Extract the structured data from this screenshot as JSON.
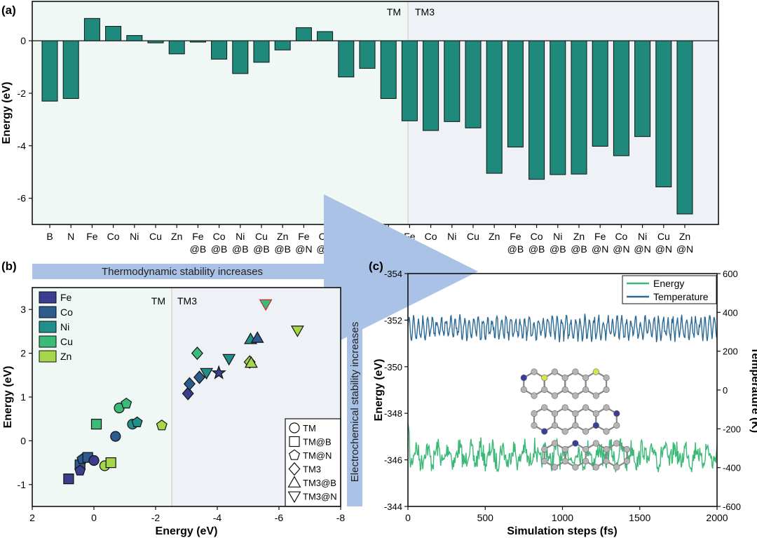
{
  "chart_data": [
    {
      "panel": "(a)",
      "type": "bar",
      "ylabel": "Energy (eV)",
      "xlabel": "",
      "ylim": [
        -7,
        1.5
      ],
      "yticks": [
        0,
        -2,
        -4,
        -6
      ],
      "regions": [
        "TM",
        "TM3"
      ],
      "bar_color": "#1f8a7c",
      "region_colors": {
        "TM": "#f0f8f6",
        "TM3": "#eef1f6"
      },
      "categories": [
        {
          "l1": "B",
          "l2": ""
        },
        {
          "l1": "N",
          "l2": ""
        },
        {
          "l1": "Fe",
          "l2": ""
        },
        {
          "l1": "Co",
          "l2": ""
        },
        {
          "l1": "Ni",
          "l2": ""
        },
        {
          "l1": "Cu",
          "l2": ""
        },
        {
          "l1": "Zn",
          "l2": ""
        },
        {
          "l1": "Fe",
          "l2": "@B"
        },
        {
          "l1": "Co",
          "l2": "@B"
        },
        {
          "l1": "Ni",
          "l2": "@B"
        },
        {
          "l1": "Cu",
          "l2": "@B"
        },
        {
          "l1": "Zn",
          "l2": "@B"
        },
        {
          "l1": "Fe",
          "l2": "@N"
        },
        {
          "l1": "Co",
          "l2": "@N"
        },
        {
          "l1": "Ni",
          "l2": "@N"
        },
        {
          "l1": "Cu",
          "l2": "@N"
        },
        {
          "l1": "Zn",
          "l2": "@N"
        },
        {
          "l1": "Fe",
          "l2": ""
        },
        {
          "l1": "Co",
          "l2": ""
        },
        {
          "l1": "Ni",
          "l2": ""
        },
        {
          "l1": "Cu",
          "l2": ""
        },
        {
          "l1": "Zn",
          "l2": ""
        },
        {
          "l1": "Fe",
          "l2": "@B"
        },
        {
          "l1": "Co",
          "l2": "@B"
        },
        {
          "l1": "Ni",
          "l2": "@B"
        },
        {
          "l1": "Zn",
          "l2": "@B"
        },
        {
          "l1": "Fe",
          "l2": "@N"
        },
        {
          "l1": "Co",
          "l2": "@N"
        },
        {
          "l1": "Ni",
          "l2": "@N"
        },
        {
          "l1": "Cu",
          "l2": "@N"
        },
        {
          "l1": "Zn",
          "l2": "@N"
        }
      ],
      "values": [
        -2.3,
        -2.2,
        0.85,
        0.55,
        0.2,
        -0.08,
        -0.5,
        -0.05,
        -0.7,
        -1.25,
        -0.82,
        -0.35,
        0.5,
        0.35,
        -1.38,
        -1.05,
        -2.2,
        -3.05,
        -3.42,
        -3.08,
        -3.32,
        -5.05,
        -4.05,
        -5.28,
        -5.1,
        -5.08,
        -4.02,
        -4.38,
        -3.65,
        -5.57,
        -6.6
      ]
    },
    {
      "panel": "(b)",
      "type": "scatter",
      "xlabel": "Energy (eV)",
      "ylabel": "Energy (eV)",
      "xlim": [
        2,
        -8
      ],
      "ylim": [
        -1.5,
        3.5
      ],
      "xticks": [
        2,
        0,
        -2,
        -4,
        -6,
        -8
      ],
      "yticks": [
        -1,
        0,
        1,
        2,
        3
      ],
      "regions": [
        "TM",
        "TM3"
      ],
      "arrow_horizontal": "Thermodynamic stability increases",
      "arrow_vertical": "Electrochemical stability increases",
      "elements": [
        {
          "name": "Fe",
          "color": "#3b3d8f"
        },
        {
          "name": "Co",
          "color": "#2c5c8e"
        },
        {
          "name": "Ni",
          "color": "#22908a"
        },
        {
          "name": "Cu",
          "color": "#3bbb78"
        },
        {
          "name": "Zn",
          "color": "#a6d64a"
        }
      ],
      "shapes": [
        {
          "name": "TM",
          "shape": "circle"
        },
        {
          "name": "TM@B",
          "shape": "square"
        },
        {
          "name": "TM@N",
          "shape": "pentagon"
        },
        {
          "name": "TM3",
          "shape": "diamond"
        },
        {
          "name": "TM3@B",
          "shape": "triangle-up"
        },
        {
          "name": "TM3@N",
          "shape": "triangle-down"
        }
      ],
      "points": [
        {
          "x": 0.82,
          "y": -0.87,
          "el": "Fe",
          "shape": "square"
        },
        {
          "x": 0.45,
          "y": -0.55,
          "el": "Co",
          "shape": "square"
        },
        {
          "x": 0.38,
          "y": -0.42,
          "el": "Co",
          "shape": "pentagon"
        },
        {
          "x": 0.45,
          "y": -0.68,
          "el": "Fe",
          "shape": "pentagon"
        },
        {
          "x": 0.2,
          "y": -0.38,
          "el": "Co",
          "shape": "square"
        },
        {
          "x": 0.0,
          "y": -0.45,
          "el": "Fe",
          "shape": "circle"
        },
        {
          "x": -0.08,
          "y": 0.38,
          "el": "Cu",
          "shape": "square"
        },
        {
          "x": -0.35,
          "y": -0.57,
          "el": "Zn",
          "shape": "circle"
        },
        {
          "x": -0.55,
          "y": -0.5,
          "el": "Zn",
          "shape": "square"
        },
        {
          "x": -0.7,
          "y": 0.1,
          "el": "Co",
          "shape": "circle"
        },
        {
          "x": -0.82,
          "y": 0.75,
          "el": "Cu",
          "shape": "circle"
        },
        {
          "x": -1.05,
          "y": 0.85,
          "el": "Cu",
          "shape": "pentagon"
        },
        {
          "x": -1.25,
          "y": 0.38,
          "el": "Ni",
          "shape": "circle"
        },
        {
          "x": -1.4,
          "y": 0.42,
          "el": "Ni",
          "shape": "pentagon"
        },
        {
          "x": -2.2,
          "y": 0.35,
          "el": "Zn",
          "shape": "pentagon"
        },
        {
          "x": -3.05,
          "y": 1.08,
          "el": "Fe",
          "shape": "diamond"
        },
        {
          "x": -3.1,
          "y": 1.3,
          "el": "Co",
          "shape": "diamond"
        },
        {
          "x": -3.42,
          "y": 1.45,
          "el": "Co",
          "shape": "diamond"
        },
        {
          "x": -3.35,
          "y": 2.0,
          "el": "Cu",
          "shape": "diamond"
        },
        {
          "x": -3.65,
          "y": 1.55,
          "el": "Ni",
          "shape": "triangle-down"
        },
        {
          "x": -4.05,
          "y": 1.55,
          "el": "Fe",
          "shape": "star"
        },
        {
          "x": -4.38,
          "y": 1.87,
          "el": "Ni",
          "shape": "triangle-down"
        },
        {
          "x": -5.05,
          "y": 1.8,
          "el": "Zn",
          "shape": "diamond"
        },
        {
          "x": -5.1,
          "y": 1.78,
          "el": "Zn",
          "shape": "triangle-up"
        },
        {
          "x": -5.08,
          "y": 2.32,
          "el": "Ni",
          "shape": "triangle-up"
        },
        {
          "x": -5.3,
          "y": 2.35,
          "el": "Co",
          "shape": "triangle-up"
        },
        {
          "x": -5.57,
          "y": 3.12,
          "el": "Cu",
          "shape": "triangle-down",
          "stroke": "#d2232a"
        },
        {
          "x": -6.6,
          "y": 2.52,
          "el": "Zn",
          "shape": "triangle-down"
        }
      ]
    },
    {
      "panel": "(c)",
      "type": "line",
      "xlabel": "Simulation steps (fs)",
      "ylabel": "Energy (eV)",
      "y2label": "Temperature (K)",
      "xlim": [
        0,
        2000
      ],
      "ylim": [
        -344,
        -354
      ],
      "y2lim": [
        -600,
        600
      ],
      "xticks": [
        0,
        500,
        1000,
        1500,
        2000
      ],
      "yticks": [
        -354,
        -352,
        -350,
        -348,
        -346,
        -344
      ],
      "y2ticks": [
        600,
        400,
        200,
        0,
        -200,
        -400,
        -600
      ],
      "series": [
        {
          "name": "Energy",
          "color": "#3cb878",
          "axis": "left",
          "mean": -346.2,
          "amplitude": 0.55
        },
        {
          "name": "Temperature",
          "color": "#2b6a96",
          "axis": "right",
          "mean": 320,
          "amplitude": 55
        }
      ]
    }
  ]
}
